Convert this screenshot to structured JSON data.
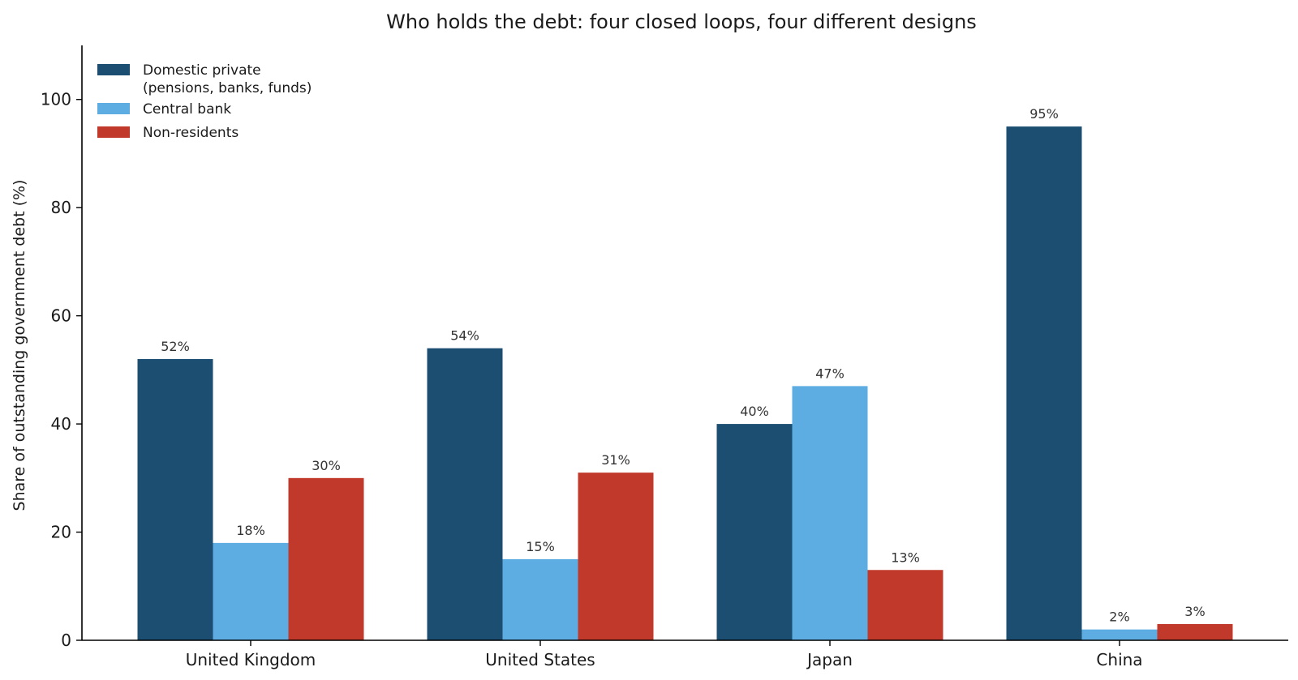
{
  "chart_data": {
    "type": "bar",
    "title": "Who holds the debt: four closed loops, four different designs",
    "xlabel": "",
    "ylabel": "Share of outstanding government debt (%)",
    "ylim": [
      0,
      110
    ],
    "yticks": [
      0,
      20,
      40,
      60,
      80,
      100
    ],
    "categories": [
      "United Kingdom",
      "United States",
      "Japan",
      "China"
    ],
    "series": [
      {
        "name": "Domestic private\n(pensions, banks, funds)",
        "color": "#1c4e72",
        "values": [
          52,
          54,
          40,
          95
        ],
        "labels": [
          "52%",
          "54%",
          "40%",
          "95%"
        ]
      },
      {
        "name": "Central bank",
        "color": "#5dade2",
        "values": [
          18,
          15,
          47,
          2
        ],
        "labels": [
          "18%",
          "15%",
          "47%",
          "2%"
        ]
      },
      {
        "name": "Non-residents",
        "color": "#c0392b",
        "values": [
          30,
          31,
          13,
          3
        ],
        "labels": [
          "30%",
          "31%",
          "13%",
          "3%"
        ]
      }
    ],
    "grid": false,
    "legend_position": "top-left"
  }
}
